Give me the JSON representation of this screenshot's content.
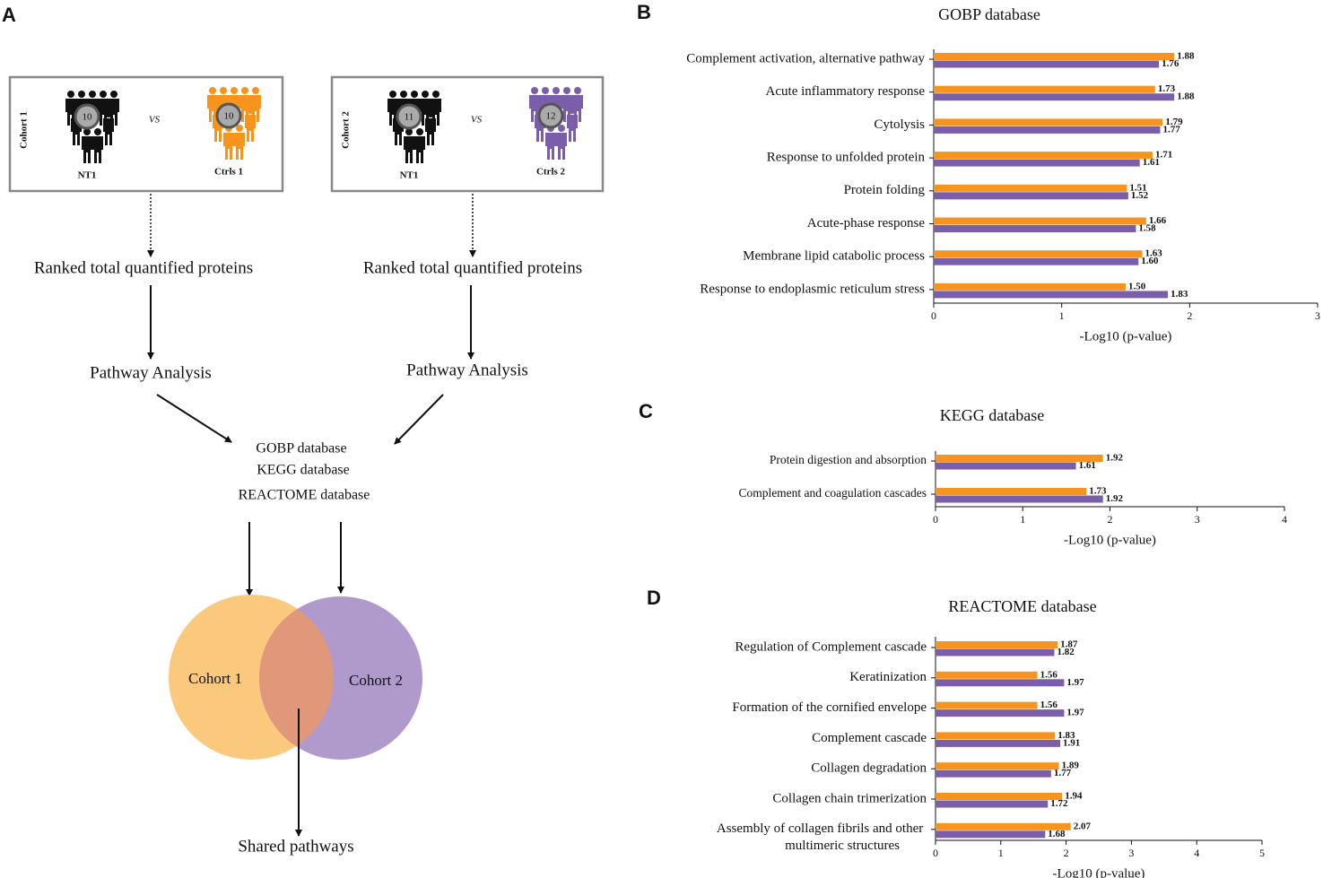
{
  "diagram": {
    "panel_label": "A",
    "cohorts": [
      {
        "label": "Cohort 1",
        "vs": "VS",
        "patients": {
          "label": "NT1",
          "count": 10
        },
        "controls": {
          "label": "Ctrls 1",
          "count": 10
        }
      },
      {
        "label": "Cohort 2",
        "vs": "VS",
        "patients": {
          "label": "NT1",
          "count": 11
        },
        "controls": {
          "label": "Ctrls 2",
          "count": 12
        }
      }
    ],
    "steps": [
      {
        "ranked": "Ranked total quantified proteins",
        "pathway": "Pathway Analysis"
      },
      {
        "ranked": "Ranked total quantified proteins",
        "pathway": "Pathway Analysis"
      }
    ],
    "databases": [
      "GOBP database",
      "KEGG database",
      "REACTOME database"
    ],
    "venn": {
      "left": "Cohort 1",
      "right": "Cohort 2"
    },
    "result": "Shared pathways"
  },
  "chart_data": [
    {
      "type": "bar",
      "orientation": "horizontal",
      "panel_label": "B",
      "title": "GOBP database",
      "x_label": "-Log10 (p-value)",
      "categories": [
        "Complement activation, alternative pathway",
        "Acute inflammatory response",
        "Cytolysis",
        "Response to unfolded protein",
        "Protein folding",
        "Acute-phase response",
        "Membrane lipid catabolic process",
        "Response to endoplasmic reticulum stress"
      ],
      "series": [
        {
          "color": "#F7941D",
          "values": [
            1.88,
            1.73,
            1.79,
            1.71,
            1.51,
            1.66,
            1.63,
            1.5
          ],
          "value_labels": [
            "1.88",
            "1.73",
            "1.79",
            "1.71",
            "1.51",
            "1.66",
            "1.63",
            "1.50"
          ]
        },
        {
          "color": "#7B5EA9",
          "values": [
            1.76,
            1.88,
            1.77,
            1.61,
            1.52,
            1.58,
            1.6,
            1.83
          ],
          "value_labels": [
            "1.76",
            "1.88",
            "1.77",
            "1.61",
            "1.52",
            "1.58",
            "1.60",
            "1.83"
          ]
        }
      ],
      "xlim": [
        0,
        3
      ],
      "xticks": [
        0,
        1,
        2,
        3
      ]
    },
    {
      "type": "bar",
      "orientation": "horizontal",
      "panel_label": "C",
      "title": "KEGG database",
      "x_label": "-Log10 (p-value)",
      "categories": [
        "Protein digestion and absorption",
        "Complement and coagulation cascades"
      ],
      "series": [
        {
          "color": "#F7941D",
          "values": [
            1.92,
            1.73
          ],
          "value_labels": [
            "1.92",
            "1.73"
          ]
        },
        {
          "color": "#7B5EA9",
          "values": [
            1.61,
            1.92
          ],
          "value_labels": [
            "1.61",
            "1.92"
          ]
        }
      ],
      "xlim": [
        0,
        4
      ],
      "xticks": [
        0,
        1,
        2,
        3,
        4
      ]
    },
    {
      "type": "bar",
      "orientation": "horizontal",
      "panel_label": "D",
      "title": "REACTOME database",
      "x_label": "-Log10 (p-value)",
      "categories": [
        "Regulation of Complement cascade",
        "Keratinization",
        "Formation of the cornified envelope",
        "Complement cascade",
        "Collagen degradation",
        "Collagen chain trimerization",
        "Assembly of collagen fibrils and other multimeric structures"
      ],
      "series": [
        {
          "color": "#F7941D",
          "values": [
            1.87,
            1.56,
            1.56,
            1.83,
            1.89,
            1.94,
            2.07
          ],
          "value_labels": [
            "1.87",
            "1.56",
            "1.56",
            "1.83",
            "1.89",
            "1.94",
            "2.07"
          ]
        },
        {
          "color": "#7B5EA9",
          "values": [
            1.82,
            1.97,
            1.97,
            1.91,
            1.77,
            1.72,
            1.68
          ],
          "value_labels": [
            "1.82",
            "1.97",
            "1.97",
            "1.91",
            "1.77",
            "1.72",
            "1.68"
          ]
        }
      ],
      "xlim": [
        0,
        5
      ],
      "xticks": [
        0,
        1,
        2,
        3,
        4,
        5
      ]
    }
  ]
}
